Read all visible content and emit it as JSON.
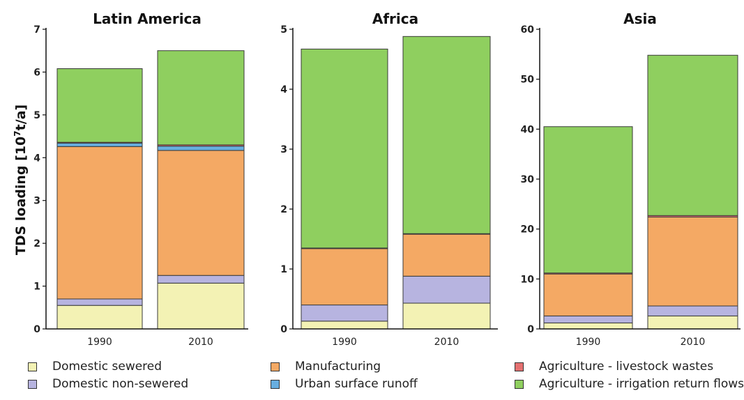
{
  "ylabel_main": "TDS loading [10",
  "ylabel_sup": "7",
  "ylabel_tail": "t/a]",
  "colors": {
    "domestic_sewered": "#f3f2b4",
    "domestic_non_sewered": "#b7b4e0",
    "manufacturing": "#f4a964",
    "urban_runoff": "#67aee0",
    "livestock": "#e47070",
    "irrigation": "#8fcf5f"
  },
  "legend": [
    {
      "label": "Domestic sewered",
      "key": "domestic_sewered"
    },
    {
      "label": "Domestic non-sewered",
      "key": "domestic_non_sewered"
    },
    {
      "label": "Manufacturing",
      "key": "manufacturing"
    },
    {
      "label": "Urban surface runoff",
      "key": "urban_runoff"
    },
    {
      "label": "Agriculture - livestock wastes",
      "key": "livestock"
    },
    {
      "label": "Agriculture - irrigation return flows",
      "key": "irrigation"
    }
  ],
  "chart_data": [
    {
      "type": "bar",
      "stacked": true,
      "title": "Latin America",
      "categories": [
        "1990",
        "2010"
      ],
      "ylim": [
        0,
        7
      ],
      "yticks": [
        0,
        1,
        2,
        3,
        4,
        5,
        6,
        7
      ],
      "series": [
        {
          "name": "Domestic sewered",
          "key": "domestic_sewered",
          "values": [
            0.55,
            1.07
          ]
        },
        {
          "name": "Domestic non-sewered",
          "key": "domestic_non_sewered",
          "values": [
            0.15,
            0.18
          ]
        },
        {
          "name": "Manufacturing",
          "key": "manufacturing",
          "values": [
            3.56,
            2.92
          ]
        },
        {
          "name": "Urban surface runoff",
          "key": "urban_runoff",
          "values": [
            0.08,
            0.1
          ]
        },
        {
          "name": "Agriculture - livestock wastes",
          "key": "livestock",
          "values": [
            0.02,
            0.03
          ]
        },
        {
          "name": "Agriculture - irrigation return flows",
          "key": "irrigation",
          "values": [
            1.72,
            2.2
          ]
        }
      ]
    },
    {
      "type": "bar",
      "stacked": true,
      "title": "Africa",
      "categories": [
        "1990",
        "2010"
      ],
      "ylim": [
        0,
        5
      ],
      "yticks": [
        0,
        1,
        2,
        3,
        4,
        5
      ],
      "series": [
        {
          "name": "Domestic sewered",
          "key": "domestic_sewered",
          "values": [
            0.13,
            0.43
          ]
        },
        {
          "name": "Domestic non-sewered",
          "key": "domestic_non_sewered",
          "values": [
            0.27,
            0.45
          ]
        },
        {
          "name": "Manufacturing",
          "key": "manufacturing",
          "values": [
            0.94,
            0.7
          ]
        },
        {
          "name": "Urban surface runoff",
          "key": "urban_runoff",
          "values": [
            0.0,
            0.0
          ]
        },
        {
          "name": "Agriculture - livestock wastes",
          "key": "livestock",
          "values": [
            0.01,
            0.01
          ]
        },
        {
          "name": "Agriculture - irrigation return flows",
          "key": "irrigation",
          "values": [
            3.32,
            3.29
          ]
        }
      ]
    },
    {
      "type": "bar",
      "stacked": true,
      "title": "Asia",
      "categories": [
        "1990",
        "2010"
      ],
      "ylim": [
        0,
        60
      ],
      "yticks": [
        0,
        10,
        20,
        30,
        40,
        50,
        60
      ],
      "series": [
        {
          "name": "Domestic sewered",
          "key": "domestic_sewered",
          "values": [
            1.2,
            2.6
          ]
        },
        {
          "name": "Domestic non-sewered",
          "key": "domestic_non_sewered",
          "values": [
            1.4,
            2.0
          ]
        },
        {
          "name": "Manufacturing",
          "key": "manufacturing",
          "values": [
            8.4,
            17.8
          ]
        },
        {
          "name": "Urban surface runoff",
          "key": "urban_runoff",
          "values": [
            0.0,
            0.0
          ]
        },
        {
          "name": "Agriculture - livestock wastes",
          "key": "livestock",
          "values": [
            0.2,
            0.3
          ]
        },
        {
          "name": "Agriculture - irrigation return flows",
          "key": "irrigation",
          "values": [
            29.3,
            32.1
          ]
        }
      ]
    }
  ]
}
